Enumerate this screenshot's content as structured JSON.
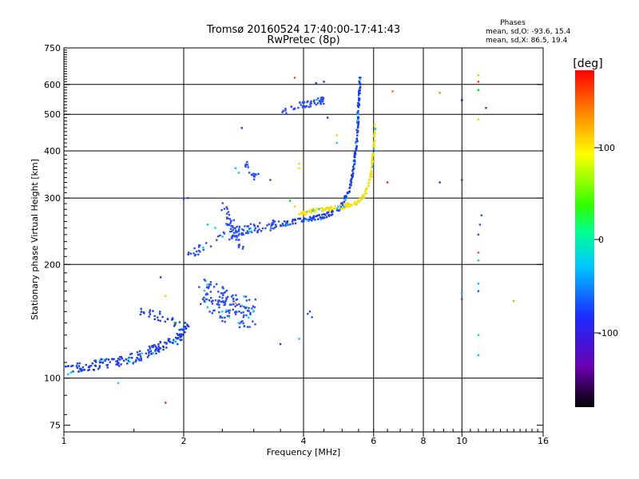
{
  "title_line1": "Tromsø 20160524 17:40:00-17:41:43",
  "title_line2": "RwPretec (8p)",
  "phases": {
    "heading": "Phases",
    "line_o": "mean, sd,O: -93.6, 15.4",
    "line_x": "mean, sd,X:  86.5, 19.4"
  },
  "colorbar": {
    "unit": "[deg]",
    "ticks": [
      "100",
      "0",
      "-100"
    ],
    "colormap": "rainbow (black-purple-blue-cyan-green-yellow-red)"
  },
  "chart_data": {
    "type": "scatter",
    "xlabel": "Frequency [MHz]",
    "ylabel": "Stationary phase Virtual Height [km]",
    "x_scale": "log",
    "y_scale": "log",
    "xlim": [
      1,
      16
    ],
    "ylim": [
      72,
      750
    ],
    "x_ticks": [
      "1",
      "2",
      "4",
      "6",
      "8",
      "10",
      "16"
    ],
    "y_ticks": [
      "75",
      "100",
      "200",
      "300",
      "400",
      "500",
      "600",
      "750"
    ],
    "grid": true,
    "clim": [
      -190,
      190
    ],
    "trace_segments": [
      {
        "name": "E-region low",
        "color": "#1a3cf5",
        "pts": [
          [
            1.0,
            105
          ],
          [
            1.1,
            107
          ],
          [
            1.2,
            108
          ],
          [
            1.3,
            110
          ],
          [
            1.4,
            111
          ],
          [
            1.5,
            113
          ],
          [
            1.6,
            116
          ],
          [
            1.7,
            120
          ],
          [
            1.8,
            123
          ],
          [
            1.9,
            126
          ],
          [
            2.0,
            130
          ]
        ],
        "spread": 0.03,
        "n": 170
      },
      {
        "name": "Es layer",
        "color": "#1a3cf5",
        "pts": [
          [
            1.55,
            150
          ],
          [
            1.7,
            147
          ],
          [
            1.85,
            142
          ],
          [
            1.95,
            138
          ],
          [
            2.05,
            135
          ]
        ],
        "spread": 0.03,
        "n": 45
      },
      {
        "name": "F1 diffuse",
        "color": "#2a4dfc",
        "pts": [
          [
            2.2,
            170
          ],
          [
            2.4,
            160
          ],
          [
            2.6,
            155
          ],
          [
            2.8,
            150
          ],
          [
            3.0,
            148
          ]
        ],
        "spread": 0.1,
        "n": 140
      },
      {
        "name": "F1 rising",
        "color": "#2a4dfc",
        "pts": [
          [
            2.05,
            212
          ],
          [
            2.3,
            225
          ],
          [
            2.6,
            240
          ],
          [
            2.9,
            248
          ],
          [
            3.2,
            252
          ],
          [
            3.5,
            256
          ]
        ],
        "spread": 0.03,
        "n": 90
      },
      {
        "name": "F2 O-mode",
        "color": "#1a3cf5",
        "pts": [
          [
            3.5,
            256
          ],
          [
            4.0,
            262
          ],
          [
            4.5,
            268
          ],
          [
            4.9,
            280
          ],
          [
            5.2,
            310
          ],
          [
            5.35,
            360
          ],
          [
            5.45,
            430
          ],
          [
            5.5,
            520
          ],
          [
            5.55,
            620
          ]
        ],
        "spread": 0.015,
        "n": 210
      },
      {
        "name": "F2 X-mode",
        "color": "#f5e000",
        "pts": [
          [
            3.9,
            272
          ],
          [
            4.4,
            280
          ],
          [
            4.9,
            283
          ],
          [
            5.4,
            290
          ],
          [
            5.7,
            305
          ],
          [
            5.9,
            340
          ],
          [
            6.0,
            400
          ],
          [
            6.05,
            470
          ]
        ],
        "spread": 0.012,
        "n": 170
      },
      {
        "name": "upper trace",
        "color": "#2a4dfc",
        "pts": [
          [
            3.5,
            505
          ],
          [
            3.8,
            525
          ],
          [
            4.2,
            535
          ],
          [
            4.5,
            545
          ]
        ],
        "spread": 0.02,
        "n": 55
      },
      {
        "name": "spread cluster",
        "color": "#2a4dfc",
        "pts": [
          [
            2.5,
            280
          ],
          [
            2.6,
            260
          ],
          [
            2.7,
            240
          ],
          [
            2.8,
            230
          ]
        ],
        "spread": 0.05,
        "n": 50
      },
      {
        "name": "mid arc",
        "color": "#2a4dfc",
        "pts": [
          [
            2.8,
            375
          ],
          [
            2.9,
            360
          ],
          [
            3.0,
            345
          ],
          [
            3.1,
            340
          ]
        ],
        "spread": 0.03,
        "n": 18
      }
    ],
    "extra_points": [
      {
        "x": 1.8,
        "y": 86,
        "color": "#ff2020"
      },
      {
        "x": 3.8,
        "y": 625,
        "color": "#ff4020"
      },
      {
        "x": 6.7,
        "y": 575,
        "color": "#ff6020"
      },
      {
        "x": 8.8,
        "y": 570,
        "color": "#ff8000"
      },
      {
        "x": 11.0,
        "y": 635,
        "color": "#ffc000"
      },
      {
        "x": 11.0,
        "y": 610,
        "color": "#ff3000"
      },
      {
        "x": 11.0,
        "y": 580,
        "color": "#00e000"
      },
      {
        "x": 11.0,
        "y": 485,
        "color": "#a0ff00"
      },
      {
        "x": 11.5,
        "y": 520,
        "color": "#1a3cf5"
      },
      {
        "x": 10.0,
        "y": 545,
        "color": "#0010c0"
      },
      {
        "x": 10.0,
        "y": 335,
        "color": "#1a3cf5"
      },
      {
        "x": 8.8,
        "y": 330,
        "color": "#1a3cf5"
      },
      {
        "x": 6.5,
        "y": 330,
        "color": "#ff3000"
      },
      {
        "x": 11.2,
        "y": 270,
        "color": "#2a4dfc"
      },
      {
        "x": 11.1,
        "y": 255,
        "color": "#2a4dfc"
      },
      {
        "x": 11.0,
        "y": 240,
        "color": "#2a4dfc"
      },
      {
        "x": 11.0,
        "y": 215,
        "color": "#ff4040"
      },
      {
        "x": 11.0,
        "y": 205,
        "color": "#00d0ff"
      },
      {
        "x": 11.0,
        "y": 178,
        "color": "#00c0ff"
      },
      {
        "x": 11.0,
        "y": 170,
        "color": "#2a4dfc"
      },
      {
        "x": 10.0,
        "y": 168,
        "color": "#00b0ff"
      },
      {
        "x": 10.0,
        "y": 162,
        "color": "#2a4dfc"
      },
      {
        "x": 13.5,
        "y": 160,
        "color": "#ffa000"
      },
      {
        "x": 11.0,
        "y": 130,
        "color": "#00d0ff"
      },
      {
        "x": 11.0,
        "y": 115,
        "color": "#00c0ff"
      },
      {
        "x": 4.1,
        "y": 148,
        "color": "#2a4dfc"
      },
      {
        "x": 4.2,
        "y": 145,
        "color": "#2a4dfc"
      },
      {
        "x": 4.15,
        "y": 150,
        "color": "#2a4dfc"
      },
      {
        "x": 3.5,
        "y": 123,
        "color": "#1a3cf5"
      },
      {
        "x": 3.9,
        "y": 127,
        "color": "#00d0ff"
      },
      {
        "x": 1.37,
        "y": 97,
        "color": "#00d0ff"
      },
      {
        "x": 2.05,
        "y": 300,
        "color": "#1a3cf5"
      },
      {
        "x": 2.0,
        "y": 298,
        "color": "#2a4dfc"
      },
      {
        "x": 2.8,
        "y": 460,
        "color": "#1a3cf5"
      },
      {
        "x": 4.3,
        "y": 605,
        "color": "#1a3cf5"
      },
      {
        "x": 4.5,
        "y": 610,
        "color": "#1a3cf5"
      },
      {
        "x": 4.6,
        "y": 490,
        "color": "#1a3cf5"
      },
      {
        "x": 3.9,
        "y": 370,
        "color": "#ffd000"
      },
      {
        "x": 3.9,
        "y": 360,
        "color": "#ffe000"
      },
      {
        "x": 4.85,
        "y": 440,
        "color": "#ffd000"
      },
      {
        "x": 4.85,
        "y": 420,
        "color": "#00d0ff"
      },
      {
        "x": 3.7,
        "y": 295,
        "color": "#00e000"
      },
      {
        "x": 3.8,
        "y": 285,
        "color": "#ffd000"
      },
      {
        "x": 1.8,
        "y": 165,
        "color": "#ffd000"
      },
      {
        "x": 1.9,
        "y": 140,
        "color": "#00c000"
      },
      {
        "x": 2.5,
        "y": 150,
        "color": "#00d0ff"
      },
      {
        "x": 2.6,
        "y": 145,
        "color": "#00e0a0"
      },
      {
        "x": 2.7,
        "y": 158,
        "color": "#ffa000"
      },
      {
        "x": 2.75,
        "y": 140,
        "color": "#00d0ff"
      },
      {
        "x": 3.0,
        "y": 150,
        "color": "#00d0ff"
      },
      {
        "x": 2.3,
        "y": 255,
        "color": "#00d0ff"
      },
      {
        "x": 2.4,
        "y": 250,
        "color": "#00d0ff"
      },
      {
        "x": 2.7,
        "y": 360,
        "color": "#00d0ff"
      },
      {
        "x": 2.75,
        "y": 350,
        "color": "#00d0ff"
      },
      {
        "x": 1.75,
        "y": 185,
        "color": "#1a3cf5"
      },
      {
        "x": 3.3,
        "y": 335,
        "color": "#2a4dfc"
      }
    ]
  }
}
